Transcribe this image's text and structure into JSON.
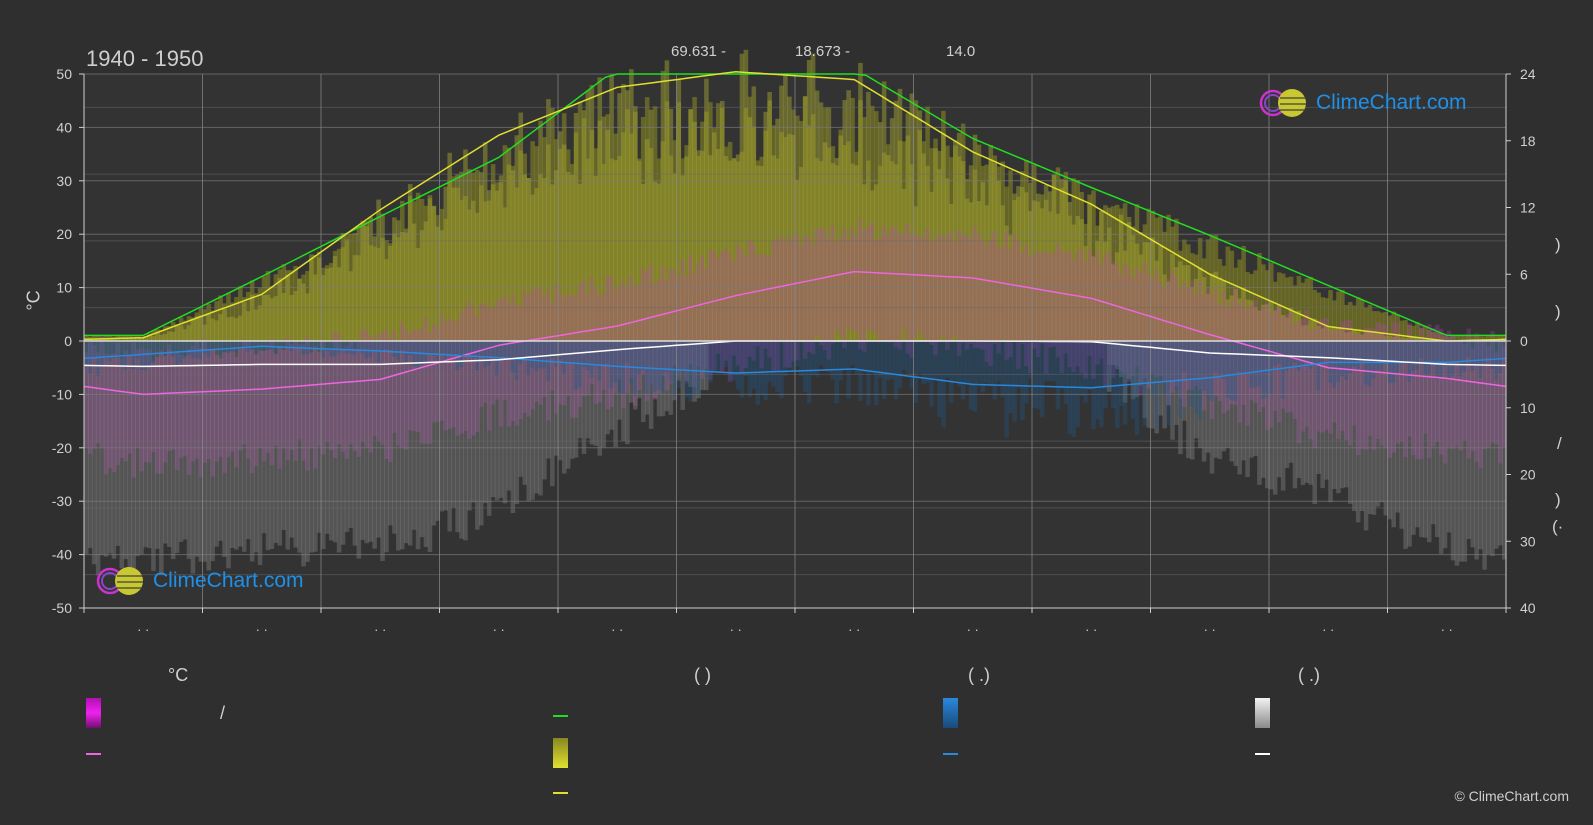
{
  "header": {
    "period": "1940 - 1950",
    "stat_1": "69.631 -",
    "stat_2": "18.673 -",
    "stat_3": "14.0"
  },
  "chart_data": {
    "type": "area",
    "title": "",
    "left_axis": {
      "label": "°C",
      "range": [
        -50,
        50
      ],
      "ticks": [
        50,
        40,
        30,
        20,
        10,
        0,
        -10,
        -20,
        -30,
        -40,
        -50
      ]
    },
    "right_axis_upper": {
      "range": [
        0,
        24
      ],
      "ticks": [
        24,
        18,
        12,
        6,
        0
      ]
    },
    "right_axis_lower": {
      "range": [
        0,
        40
      ],
      "ticks": [
        10,
        20,
        30,
        40
      ]
    },
    "month_labels": [
      "· ·",
      "· ·",
      "· ·",
      "· ·",
      "· ·",
      "· ·",
      "· ·",
      "· ·",
      "· ·",
      "· ·",
      "· ·",
      "· ·"
    ],
    "grid": true,
    "series": [
      {
        "color": "#22dd22",
        "values": [
          0.5,
          5.8,
          11.2,
          16.5,
          24.5,
          24.5,
          24.5,
          18.2,
          13.8,
          9.5,
          5.0,
          0.5
        ]
      },
      {
        "color": "#e0e030",
        "values": [
          0.3,
          4.2,
          11.8,
          18.5,
          22.8,
          24.2,
          23.5,
          17.0,
          12.3,
          6.0,
          1.3,
          0.0
        ]
      },
      {
        "color": "#ee66dd",
        "values": [
          -10.0,
          -9.0,
          -7.2,
          -0.8,
          2.8,
          8.5,
          13.0,
          11.8,
          8.0,
          1.2,
          -5.0,
          -7.0
        ]
      },
      {
        "color": "#2a88dd",
        "values": [
          2.0,
          0.8,
          1.5,
          2.5,
          3.8,
          4.8,
          4.2,
          6.5,
          7.0,
          5.5,
          3.2,
          3.2
        ]
      },
      {
        "color": "#ffffff",
        "values": [
          3.8,
          3.5,
          3.5,
          2.8,
          1.3,
          0.0,
          0.0,
          0.0,
          0.1,
          1.8,
          2.5,
          3.5
        ]
      }
    ]
  },
  "legend": {
    "col1_head": "°C",
    "col1_row1_text": "/",
    "col2_head": "(            )",
    "col3_head": "(    .)",
    "col4_head": "(    .)"
  },
  "colors": {
    "background": "#2f2f2f",
    "daylight": "#22dd22",
    "sunshine": "#e0e030",
    "temperature": "#ee66dd",
    "precipitation": "#2a88dd",
    "snow": "#ffffff"
  },
  "right_axis_parens": {
    "upper_1": ")",
    "upper_2": ")",
    "lower_slash": "/",
    "lower_1": ")",
    "lower_2": "(·"
  },
  "logo_text": "ClimeChart.com",
  "copyright": "© ClimeChart.com"
}
